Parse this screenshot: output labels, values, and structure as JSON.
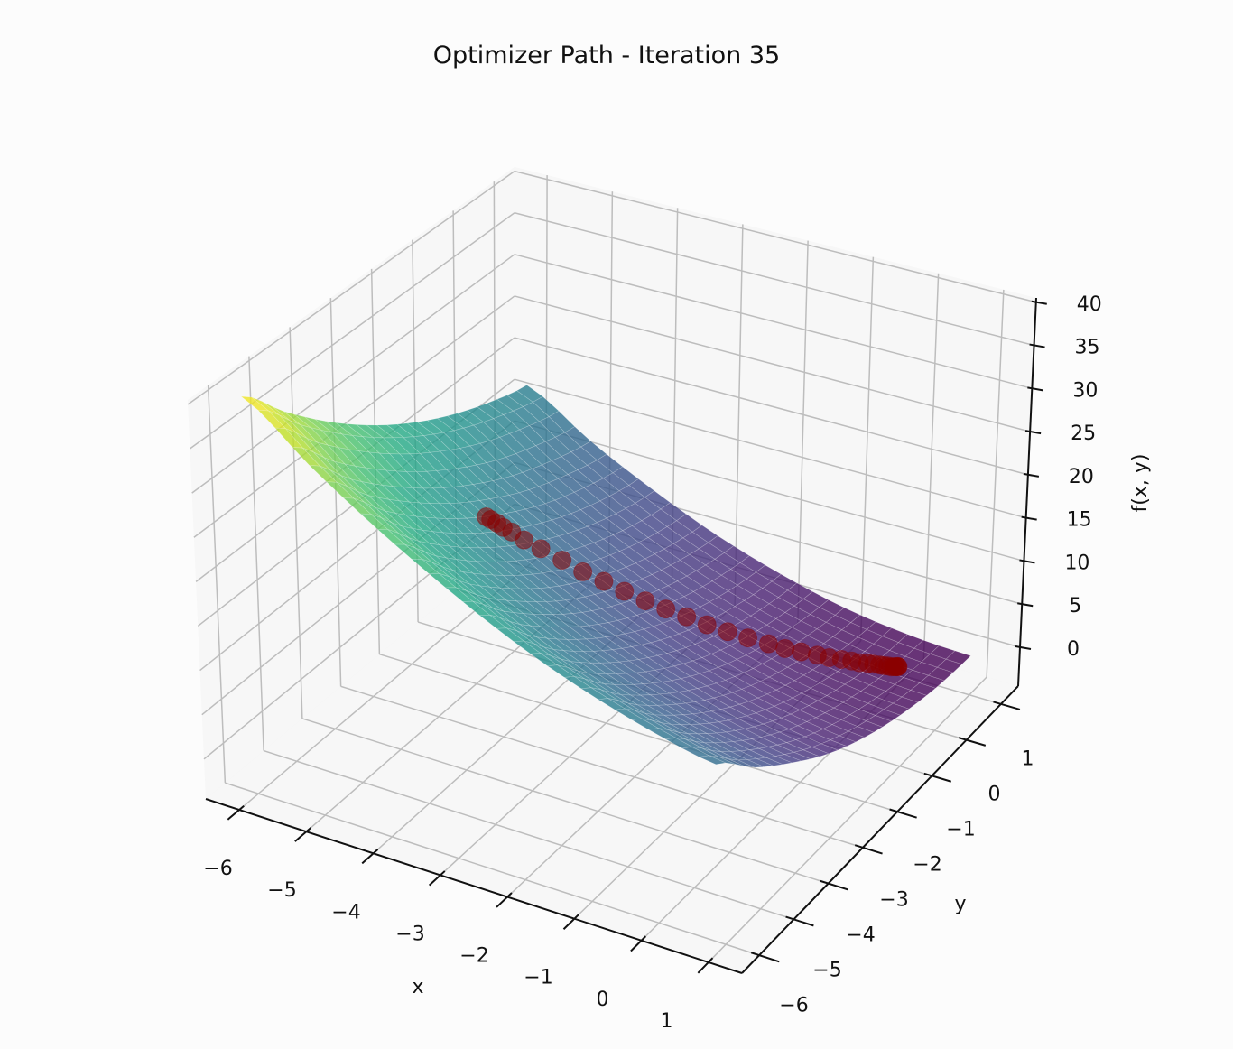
{
  "title": "Optimizer Path - Iteration 35",
  "chart_data": {
    "type": "surface3d",
    "title": "Optimizer Path - Iteration 35",
    "xlabel": "x",
    "ylabel": "y",
    "zlabel": "f(x, y)",
    "xlim": [
      -6.5,
      1.5
    ],
    "ylim": [
      -6.5,
      1.5
    ],
    "zlim": [
      -4.5,
      40.5
    ],
    "xticks": [
      -6,
      -5,
      -4,
      -3,
      -2,
      -1,
      0,
      1
    ],
    "xtick_labels": [
      "−6",
      "−5",
      "−4",
      "−3",
      "−2",
      "−1",
      "0",
      "1"
    ],
    "yticks": [
      -6,
      -5,
      -4,
      -3,
      -2,
      -1,
      0,
      1
    ],
    "ytick_labels": [
      "−6",
      "−5",
      "−4",
      "−3",
      "−2",
      "−1",
      "0",
      "1"
    ],
    "zticks": [
      0,
      5,
      10,
      15,
      20,
      25,
      30,
      35,
      40
    ],
    "ztick_labels": [
      "0",
      "5",
      "10",
      "15",
      "20",
      "25",
      "30",
      "35",
      "40"
    ],
    "grid": true,
    "colormap": "viridis",
    "surface": {
      "x": [
        -6,
        -5,
        -4,
        -3,
        -2,
        -1,
        0,
        1
      ],
      "y": [
        -6,
        -5,
        -4,
        -3,
        -2,
        -1,
        0,
        1
      ],
      "z": [
        [
          40.2,
          34.4,
          29.3,
          24.9,
          21.1,
          18.1,
          15.8,
          14.2
        ],
        [
          35.2,
          29.5,
          24.6,
          20.4,
          16.8,
          14.0,
          11.9,
          10.4
        ],
        [
          30.7,
          25.3,
          20.5,
          16.5,
          13.1,
          10.5,
          8.5,
          7.3
        ],
        [
          26.8,
          21.6,
          17.0,
          13.1,
          10.0,
          7.5,
          5.7,
          4.6
        ],
        [
          23.5,
          18.5,
          14.1,
          10.4,
          7.4,
          5.1,
          3.5,
          2.6
        ],
        [
          20.8,
          15.9,
          11.7,
          8.2,
          5.4,
          3.3,
          1.9,
          1.2
        ],
        [
          18.7,
          14.0,
          9.9,
          6.6,
          4.0,
          2.1,
          0.8,
          0.3
        ],
        [
          17.2,
          12.6,
          8.8,
          5.6,
          3.2,
          1.4,
          0.4,
          0.0
        ]
      ]
    },
    "path": {
      "color": "#8b0000",
      "x": [
        -4.5,
        -4.45,
        -4.38,
        -4.31,
        -4.21,
        -4.07,
        -3.88,
        -3.64,
        -3.4,
        -3.16,
        -2.92,
        -2.68,
        -2.44,
        -2.2,
        -1.96,
        -1.72,
        -1.48,
        -1.24,
        -1.04,
        -0.85,
        -0.66,
        -0.52,
        -0.37,
        -0.25,
        -0.16,
        -0.06,
        0.01,
        0.08,
        0.13,
        0.18,
        0.22,
        0.25,
        0.27,
        0.29,
        0.3,
        0.3
      ],
      "y": [
        -2.5,
        -2.47,
        -2.43,
        -2.39,
        -2.34,
        -2.26,
        -2.15,
        -2.01,
        -1.88,
        -1.74,
        -1.61,
        -1.47,
        -1.34,
        -1.2,
        -1.07,
        -0.93,
        -0.8,
        -0.66,
        -0.56,
        -0.45,
        -0.34,
        -0.26,
        -0.18,
        -0.11,
        -0.06,
        0.0,
        0.04,
        0.08,
        0.11,
        0.13,
        0.15,
        0.17,
        0.18,
        0.19,
        0.2,
        0.2
      ],
      "z": [
        17.6,
        17.3,
        16.9,
        16.4,
        15.9,
        15.0,
        14.0,
        12.7,
        11.4,
        10.3,
        9.2,
        8.1,
        7.2,
        6.3,
        5.4,
        4.6,
        3.9,
        3.2,
        2.7,
        2.3,
        1.9,
        1.6,
        1.4,
        1.2,
        1.0,
        0.9,
        0.8,
        0.7,
        0.6,
        0.6,
        0.5,
        0.5,
        0.5,
        0.5,
        0.5,
        0.5
      ]
    }
  }
}
